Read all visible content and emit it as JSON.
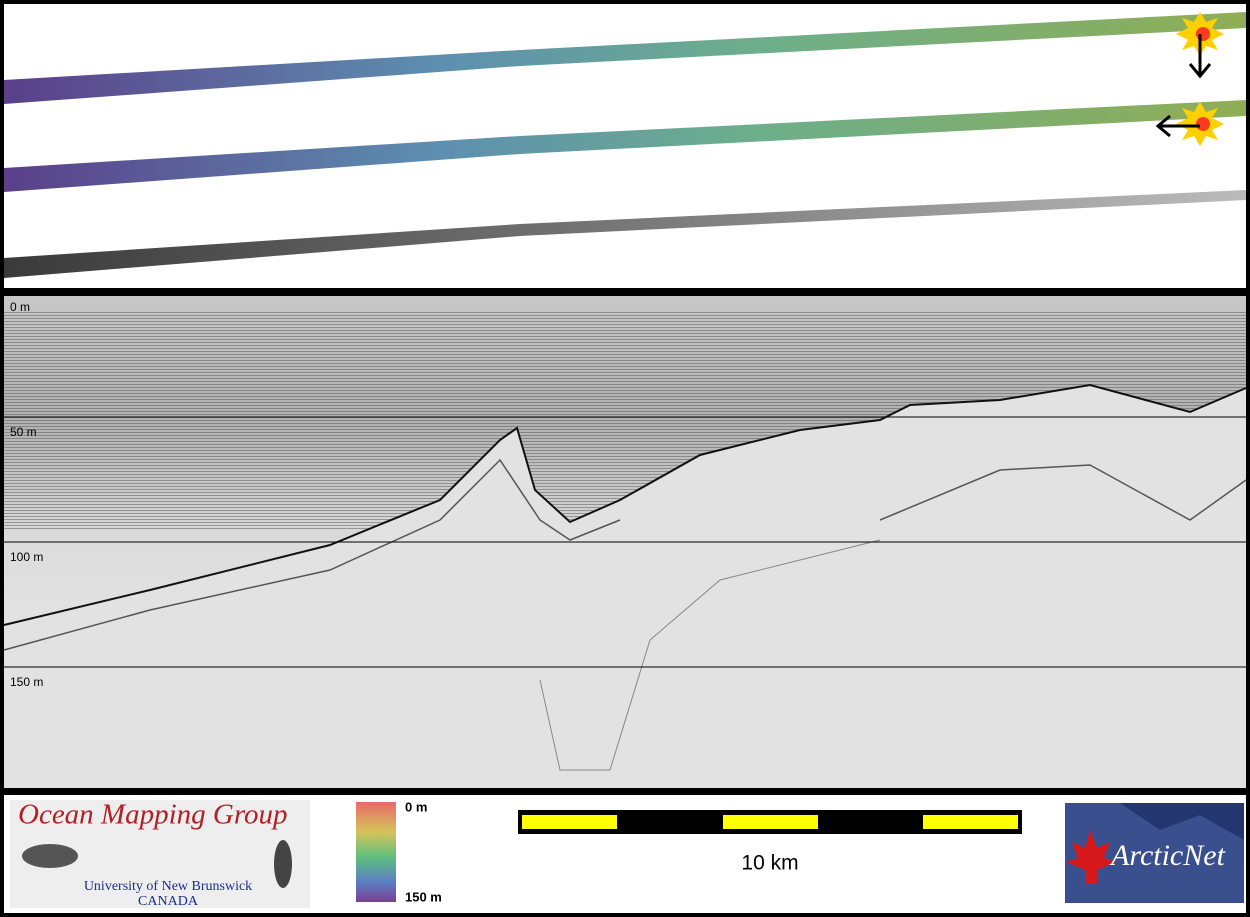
{
  "depth_labels": [
    "0 m",
    "50 m",
    "100 m",
    "150 m"
  ],
  "logo": {
    "title": "Ocean Mapping Group",
    "subtitle": "University of New Brunswick",
    "country": "CANADA"
  },
  "color_scale": {
    "top": "0 m",
    "bottom": "150 m"
  },
  "scale_bar": {
    "label": "10 km"
  },
  "partner_logo": "ArcticNet"
}
